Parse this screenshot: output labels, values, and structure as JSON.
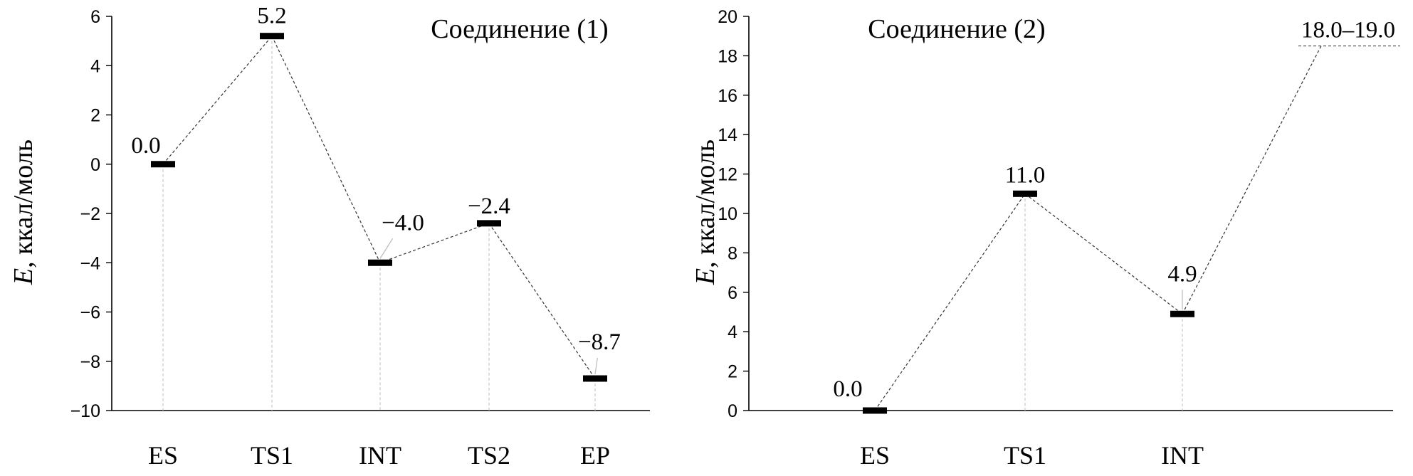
{
  "chart_data": [
    {
      "type": "line",
      "title": "Соединение (1)",
      "ylabel_italic": "E",
      "ylabel_rest": ", ккал/моль",
      "ylim": [
        -10,
        6
      ],
      "yticks": [
        6,
        4,
        2,
        0,
        -2,
        -4,
        -6,
        -8,
        -10
      ],
      "ytick_labels": [
        "6",
        "4",
        "2",
        "0",
        "−2",
        "−4",
        "−6",
        "−8",
        "−10"
      ],
      "categories": [
        "ES",
        "TS1",
        "INT",
        "TS2",
        "EP"
      ],
      "series": [
        {
          "values": [
            0.0,
            5.2,
            -4.0,
            -2.4,
            -8.7
          ]
        }
      ],
      "data_labels": [
        "0.0",
        "5.2",
        "−4.0",
        "−2.4",
        "−8.7"
      ]
    },
    {
      "type": "line",
      "title": "Соединение (2)",
      "ylabel_italic": "E",
      "ylabel_rest": ", ккал/моль",
      "ylim": [
        0,
        20
      ],
      "yticks": [
        20,
        18,
        16,
        14,
        12,
        10,
        8,
        6,
        4,
        2,
        0
      ],
      "ytick_labels": [
        "20",
        "18",
        "16",
        "14",
        "12",
        "10",
        "8",
        "6",
        "4",
        "2",
        "0"
      ],
      "categories": [
        "ES",
        "TS1",
        "INT",
        ""
      ],
      "series": [
        {
          "values": [
            0.0,
            11.0,
            4.9,
            18.5
          ]
        }
      ],
      "data_labels": [
        "0.0",
        "11.0",
        "4.9",
        "18.0–19.0"
      ]
    }
  ]
}
